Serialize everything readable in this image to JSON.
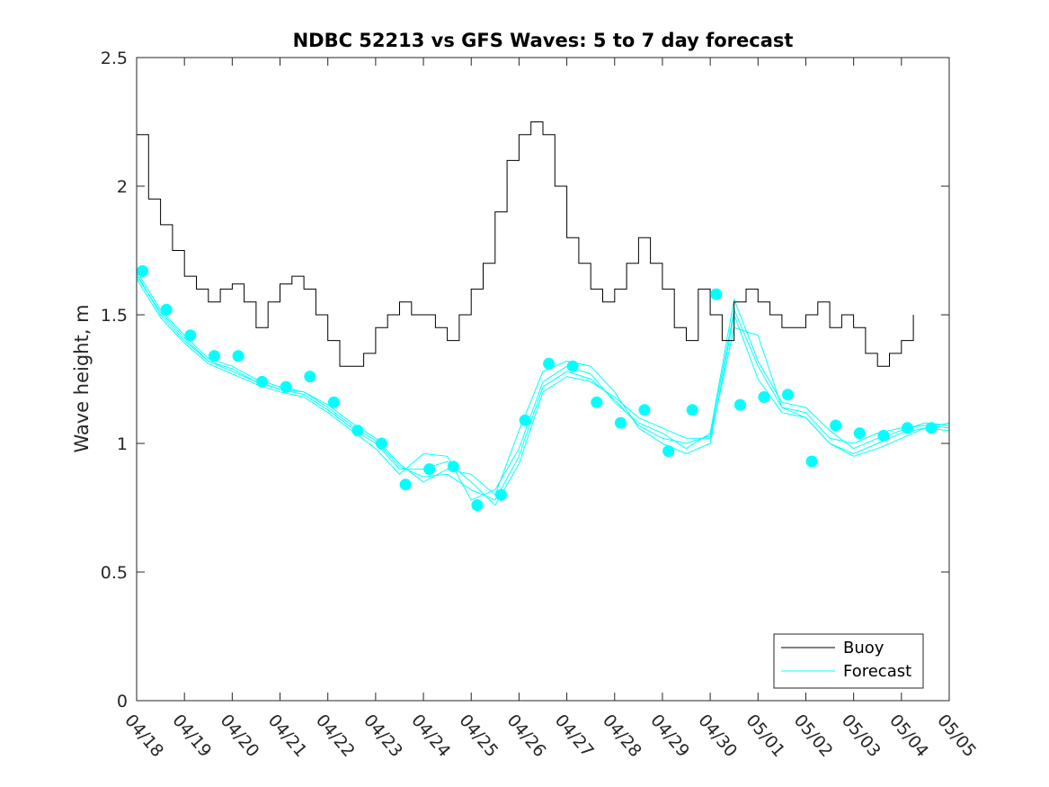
{
  "chart_data": {
    "type": "line",
    "title": "NDBC 52213 vs GFS Waves: 5 to 7 day forecast",
    "xlabel": "",
    "ylabel": "Wave height, m",
    "xlim": [
      0,
      17
    ],
    "ylim": [
      0,
      2.5
    ],
    "x_tick_labels": [
      "04/18",
      "04/19",
      "04/20",
      "04/21",
      "04/22",
      "04/23",
      "04/24",
      "04/25",
      "04/26",
      "04/27",
      "04/28",
      "04/29",
      "04/30",
      "05/01",
      "05/02",
      "05/03",
      "05/04",
      "05/05"
    ],
    "y_ticks": [
      0,
      0.5,
      1,
      1.5,
      2,
      2.5
    ],
    "y_tick_labels": [
      "0",
      "0.5",
      "1",
      "1.5",
      "2",
      "2.5"
    ],
    "grid": false,
    "legend_position": "bottom-right",
    "colors": {
      "buoy": "#000000",
      "forecast": "#00ffff"
    },
    "series": [
      {
        "name": "Buoy",
        "style": "line",
        "x": [
          0,
          0.25,
          0.5,
          0.75,
          1,
          1.25,
          1.5,
          1.75,
          2,
          2.25,
          2.5,
          2.75,
          3,
          3.25,
          3.5,
          3.75,
          4,
          4.25,
          4.5,
          4.75,
          5,
          5.25,
          5.5,
          5.75,
          6,
          6.25,
          6.5,
          6.75,
          7,
          7.25,
          7.5,
          7.75,
          8,
          8.25,
          8.5,
          8.75,
          9,
          9.25,
          9.5,
          9.75,
          10,
          10.25,
          10.5,
          10.75,
          11,
          11.25,
          11.5,
          11.75,
          12,
          12.25,
          12.5,
          12.75,
          13,
          13.25,
          13.5,
          13.75,
          14,
          14.25,
          14.5,
          14.75,
          15,
          15.25,
          15.5,
          15.75,
          16,
          16.25
        ],
        "values": [
          2.2,
          1.95,
          1.85,
          1.75,
          1.65,
          1.6,
          1.55,
          1.6,
          1.62,
          1.55,
          1.45,
          1.55,
          1.62,
          1.65,
          1.6,
          1.5,
          1.4,
          1.3,
          1.3,
          1.35,
          1.45,
          1.5,
          1.55,
          1.5,
          1.5,
          1.45,
          1.4,
          1.5,
          1.6,
          1.7,
          1.9,
          2.1,
          2.2,
          2.25,
          2.2,
          2.0,
          1.8,
          1.7,
          1.6,
          1.55,
          1.6,
          1.7,
          1.8,
          1.7,
          1.6,
          1.45,
          1.4,
          1.6,
          1.5,
          1.4,
          1.55,
          1.6,
          1.55,
          1.5,
          1.45,
          1.45,
          1.5,
          1.55,
          1.45,
          1.5,
          1.45,
          1.35,
          1.3,
          1.35,
          1.4,
          1.5
        ]
      },
      {
        "name": "Forecast",
        "style": "line",
        "traces": [
          {
            "x": [
              0,
              0.5,
              1,
              1.5,
              2,
              2.5,
              3,
              3.5,
              4,
              4.5,
              5,
              5.5,
              6,
              6.5,
              7,
              7.5,
              8,
              8.5,
              9,
              9.5,
              10,
              10.5,
              11,
              11.5,
              12,
              12.5,
              13,
              13.5,
              14,
              14.5,
              15,
              15.5,
              16,
              16.5,
              17
            ],
            "values": [
              1.67,
              1.52,
              1.42,
              1.33,
              1.3,
              1.25,
              1.22,
              1.2,
              1.15,
              1.08,
              1.02,
              0.92,
              0.85,
              0.9,
              0.88,
              0.8,
              1.05,
              1.28,
              1.32,
              1.3,
              1.2,
              1.06,
              1.0,
              0.96,
              1.0,
              1.5,
              1.25,
              1.12,
              1.1,
              1.0,
              0.95,
              0.98,
              1.02,
              1.06,
              1.05
            ]
          },
          {
            "x": [
              0,
              0.5,
              1,
              1.5,
              2,
              2.5,
              3,
              3.5,
              4,
              4.5,
              5,
              5.5,
              6,
              6.5,
              7,
              7.5,
              8,
              8.5,
              9,
              9.5,
              10,
              10.5,
              11,
              11.5,
              12,
              12.5,
              13,
              13.5,
              14,
              14.5,
              15,
              15.5,
              16,
              16.5,
              17
            ],
            "values": [
              1.64,
              1.49,
              1.39,
              1.31,
              1.27,
              1.23,
              1.2,
              1.18,
              1.12,
              1.05,
              0.98,
              0.88,
              0.96,
              0.95,
              0.78,
              0.82,
              0.98,
              1.24,
              1.3,
              1.27,
              1.16,
              1.08,
              1.04,
              0.98,
              1.04,
              1.56,
              1.32,
              1.16,
              1.14,
              1.05,
              0.98,
              1.02,
              1.05,
              1.08,
              1.07
            ]
          },
          {
            "x": [
              0,
              0.5,
              1,
              1.5,
              2,
              2.5,
              3,
              3.5,
              4,
              4.5,
              5,
              5.5,
              6,
              6.5,
              7,
              7.5,
              8,
              8.5,
              9,
              9.5,
              10,
              10.5,
              11,
              11.5,
              12,
              12.5,
              13,
              13.5,
              14,
              14.5,
              15,
              15.5,
              16,
              16.5,
              17
            ],
            "values": [
              1.66,
              1.5,
              1.4,
              1.32,
              1.29,
              1.24,
              1.21,
              1.19,
              1.13,
              1.06,
              1.0,
              0.9,
              0.9,
              0.93,
              0.85,
              0.76,
              0.92,
              1.2,
              1.26,
              1.24,
              1.18,
              1.1,
              1.06,
              1.02,
              1.02,
              1.45,
              1.42,
              1.14,
              1.12,
              1.02,
              1.0,
              1.04,
              1.06,
              1.07,
              1.06
            ]
          },
          {
            "x": [
              0,
              0.5,
              1,
              1.5,
              2,
              2.5,
              3,
              3.5,
              4,
              4.5,
              5,
              5.5,
              6,
              6.5,
              7,
              7.5,
              8,
              8.5,
              9,
              9.5,
              10,
              10.5,
              11,
              11.5,
              12,
              12.5,
              13,
              13.5,
              14,
              14.5,
              15,
              15.5,
              16,
              16.5,
              17
            ],
            "values": [
              1.65,
              1.51,
              1.41,
              1.32,
              1.28,
              1.24,
              1.21,
              1.2,
              1.14,
              1.07,
              1.01,
              0.91,
              0.87,
              0.88,
              0.82,
              0.78,
              0.95,
              1.22,
              1.28,
              1.25,
              1.17,
              1.07,
              1.02,
              1.0,
              1.03,
              1.52,
              1.3,
              1.14,
              1.1,
              1.0,
              0.96,
              1.0,
              1.04,
              1.06,
              1.08
            ]
          }
        ],
        "markers": {
          "x": [
            0.125,
            0.625,
            1.125,
            1.625,
            2.125,
            2.625,
            3.125,
            3.625,
            4.125,
            4.625,
            5.125,
            5.625,
            6.125,
            6.625,
            7.125,
            7.625,
            8.125,
            8.625,
            9.125,
            9.625,
            10.125,
            10.625,
            11.125,
            11.625,
            12.125,
            12.625,
            13.125,
            13.625,
            14.125,
            14.625,
            15.125,
            15.625,
            16.125,
            16.625
          ],
          "values": [
            1.67,
            1.52,
            1.42,
            1.34,
            1.34,
            1.24,
            1.22,
            1.26,
            1.16,
            1.05,
            1.0,
            0.84,
            0.9,
            0.91,
            0.76,
            0.8,
            1.09,
            1.31,
            1.3,
            1.16,
            1.08,
            1.13,
            0.97,
            1.13,
            1.58,
            1.15,
            1.18,
            1.19,
            0.93,
            1.07,
            1.04,
            1.03,
            1.06,
            1.06
          ]
        }
      }
    ]
  }
}
